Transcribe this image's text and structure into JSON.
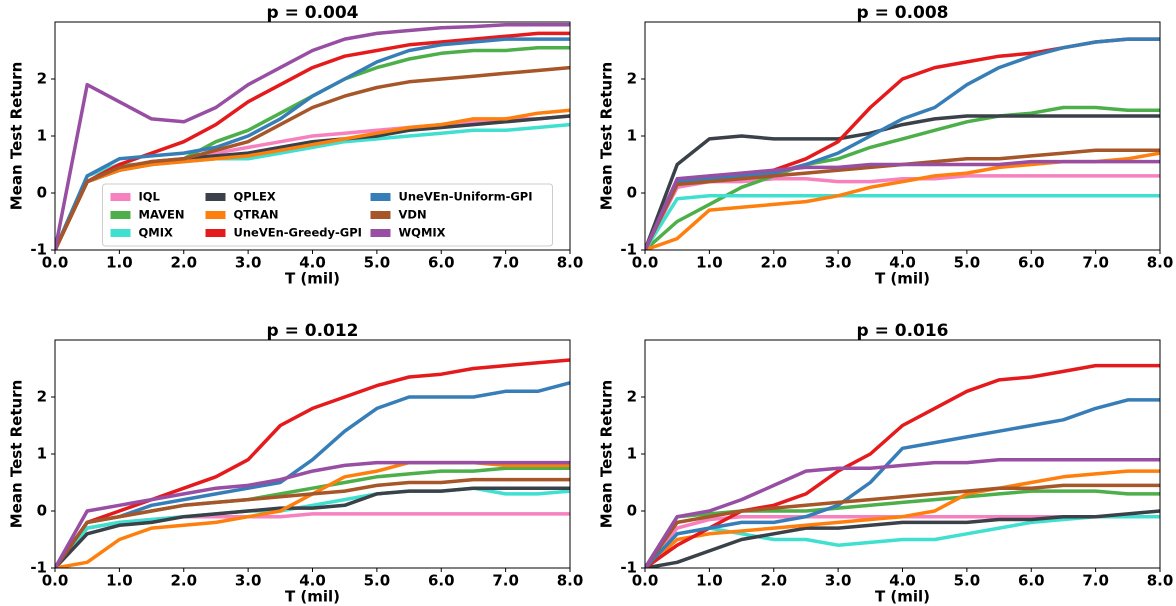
{
  "chart_data": [
    {
      "type": "line",
      "title": "p = 0.004",
      "xlabel": "T (mil)",
      "ylabel": "Mean Test Return",
      "legend": "lower center",
      "x": [
        0,
        0.5,
        1,
        1.5,
        2,
        2.5,
        3,
        3.5,
        4,
        4.5,
        5,
        5.5,
        6,
        6.5,
        7,
        7.5,
        8
      ],
      "xlim": [
        0,
        8
      ],
      "ylim": [
        -1,
        3
      ],
      "xticks": [
        {
          "value": 0,
          "label": "0.0"
        },
        {
          "value": 1,
          "label": "1.0"
        },
        {
          "value": 2,
          "label": "2.0"
        },
        {
          "value": 3,
          "label": "3.0"
        },
        {
          "value": 4,
          "label": "4.0"
        },
        {
          "value": 5,
          "label": "5.0"
        },
        {
          "value": 6,
          "label": "6.0"
        },
        {
          "value": 7,
          "label": "7.0"
        },
        {
          "value": 8,
          "label": "8.0"
        }
      ],
      "yticks": [
        -1,
        0,
        1,
        2
      ],
      "series": [
        {
          "name": "IQL",
          "color": "#f781bf",
          "values": [
            -1,
            0.2,
            0.4,
            0.55,
            0.6,
            0.7,
            0.8,
            0.9,
            1.0,
            1.05,
            1.1,
            1.15,
            1.2,
            1.25,
            1.3,
            1.3,
            1.35
          ]
        },
        {
          "name": "MAVEN",
          "color": "#4daf4a",
          "values": [
            -1,
            0.2,
            0.4,
            0.55,
            0.6,
            0.9,
            1.1,
            1.4,
            1.7,
            2.0,
            2.2,
            2.35,
            2.45,
            2.5,
            2.5,
            2.55,
            2.55
          ]
        },
        {
          "name": "QMIX",
          "color": "#40e0d0",
          "values": [
            -1,
            0.3,
            0.5,
            0.5,
            0.55,
            0.6,
            0.6,
            0.7,
            0.8,
            0.9,
            0.95,
            1.0,
            1.05,
            1.1,
            1.1,
            1.15,
            1.2
          ]
        },
        {
          "name": "QPLEX",
          "color": "#3b4148",
          "values": [
            -1,
            0.2,
            0.4,
            0.5,
            0.6,
            0.65,
            0.7,
            0.8,
            0.9,
            0.95,
            1.0,
            1.1,
            1.15,
            1.2,
            1.25,
            1.3,
            1.35
          ]
        },
        {
          "name": "QTRAN",
          "color": "#ff7f0e",
          "values": [
            -1,
            0.2,
            0.4,
            0.5,
            0.55,
            0.6,
            0.65,
            0.75,
            0.85,
            0.95,
            1.05,
            1.15,
            1.2,
            1.3,
            1.3,
            1.4,
            1.45
          ]
        },
        {
          "name": "UneVEn-Greedy-GPI",
          "color": "#e41a1c",
          "values": [
            -1,
            0.2,
            0.5,
            0.7,
            0.9,
            1.2,
            1.6,
            1.9,
            2.2,
            2.4,
            2.5,
            2.6,
            2.65,
            2.7,
            2.75,
            2.8,
            2.8
          ]
        },
        {
          "name": "UneVEn-Uniform-GPI",
          "color": "#377eb8",
          "values": [
            -1,
            0.3,
            0.6,
            0.65,
            0.7,
            0.8,
            1.0,
            1.3,
            1.7,
            2.0,
            2.3,
            2.5,
            2.6,
            2.65,
            2.7,
            2.7,
            2.7
          ]
        },
        {
          "name": "VDN",
          "color": "#a65628",
          "values": [
            -1,
            0.2,
            0.45,
            0.55,
            0.6,
            0.75,
            0.9,
            1.2,
            1.5,
            1.7,
            1.85,
            1.95,
            2.0,
            2.05,
            2.1,
            2.15,
            2.2
          ]
        },
        {
          "name": "WQMIX",
          "color": "#984ea3",
          "values": [
            -1,
            1.9,
            1.6,
            1.3,
            1.25,
            1.5,
            1.9,
            2.2,
            2.5,
            2.7,
            2.8,
            2.85,
            2.9,
            2.92,
            2.95,
            2.95,
            2.95
          ]
        }
      ]
    },
    {
      "type": "line",
      "title": "p = 0.008",
      "xlabel": "T (mil)",
      "ylabel": "Mean Test Return",
      "legend": "none",
      "x": [
        0,
        0.5,
        1,
        1.5,
        2,
        2.5,
        3,
        3.5,
        4,
        4.5,
        5,
        5.5,
        6,
        6.5,
        7,
        7.5,
        8
      ],
      "xlim": [
        0,
        8
      ],
      "ylim": [
        -1,
        3
      ],
      "xticks": [
        {
          "value": 0,
          "label": "0.0"
        },
        {
          "value": 1,
          "label": "1.0"
        },
        {
          "value": 2,
          "label": "2.0"
        },
        {
          "value": 3,
          "label": "3.0"
        },
        {
          "value": 4,
          "label": "4.0"
        },
        {
          "value": 5,
          "label": "5.0"
        },
        {
          "value": 6,
          "label": "6.0"
        },
        {
          "value": 7,
          "label": "7.0"
        },
        {
          "value": 8,
          "label": "8.0"
        }
      ],
      "yticks": [
        -1,
        0,
        1,
        2
      ],
      "series": [
        {
          "color": "#f781bf",
          "values": [
            -1,
            0.1,
            0.2,
            0.2,
            0.25,
            0.25,
            0.2,
            0.2,
            0.25,
            0.25,
            0.3,
            0.3,
            0.3,
            0.3,
            0.3,
            0.3,
            0.3
          ]
        },
        {
          "color": "#4daf4a",
          "values": [
            -1,
            -0.5,
            -0.2,
            0.1,
            0.3,
            0.5,
            0.6,
            0.8,
            0.95,
            1.1,
            1.25,
            1.35,
            1.4,
            1.5,
            1.5,
            1.45,
            1.45
          ]
        },
        {
          "color": "#40e0d0",
          "values": [
            -1,
            -0.1,
            -0.05,
            -0.05,
            -0.05,
            -0.05,
            -0.05,
            -0.05,
            -0.05,
            -0.05,
            -0.05,
            -0.05,
            -0.05,
            -0.05,
            -0.05,
            -0.05,
            -0.05
          ]
        },
        {
          "color": "#3b4148",
          "values": [
            -1,
            0.5,
            0.95,
            1.0,
            0.95,
            0.95,
            0.95,
            1.05,
            1.2,
            1.3,
            1.35,
            1.35,
            1.35,
            1.35,
            1.35,
            1.35,
            1.35
          ]
        },
        {
          "color": "#ff7f0e",
          "values": [
            -1,
            -0.8,
            -0.3,
            -0.25,
            -0.2,
            -0.15,
            -0.05,
            0.1,
            0.2,
            0.3,
            0.35,
            0.45,
            0.5,
            0.55,
            0.55,
            0.6,
            0.7
          ]
        },
        {
          "color": "#e41a1c",
          "values": [
            -1,
            0.2,
            0.25,
            0.3,
            0.4,
            0.6,
            0.9,
            1.5,
            2.0,
            2.2,
            2.3,
            2.4,
            2.45,
            2.55,
            2.65,
            2.7,
            2.7
          ]
        },
        {
          "color": "#377eb8",
          "values": [
            -1,
            0.2,
            0.25,
            0.3,
            0.35,
            0.5,
            0.7,
            1.0,
            1.3,
            1.5,
            1.9,
            2.2,
            2.4,
            2.55,
            2.65,
            2.7,
            2.7
          ]
        },
        {
          "color": "#a65628",
          "values": [
            -1,
            0.15,
            0.2,
            0.25,
            0.3,
            0.35,
            0.4,
            0.45,
            0.5,
            0.55,
            0.6,
            0.6,
            0.65,
            0.7,
            0.75,
            0.75,
            0.75
          ]
        },
        {
          "color": "#984ea3",
          "values": [
            -1,
            0.25,
            0.3,
            0.35,
            0.4,
            0.45,
            0.45,
            0.5,
            0.5,
            0.5,
            0.5,
            0.5,
            0.55,
            0.55,
            0.55,
            0.55,
            0.55
          ]
        }
      ]
    },
    {
      "type": "line",
      "title": "p = 0.012",
      "xlabel": "T (mil)",
      "ylabel": "Mean Test Return",
      "legend": "none",
      "x": [
        0,
        0.5,
        1,
        1.5,
        2,
        2.5,
        3,
        3.5,
        4,
        4.5,
        5,
        5.5,
        6,
        6.5,
        7,
        7.5,
        8
      ],
      "xlim": [
        0,
        8
      ],
      "ylim": [
        -1,
        3
      ],
      "xticks": [
        {
          "value": 0,
          "label": "0.0"
        },
        {
          "value": 1,
          "label": "1.0"
        },
        {
          "value": 2,
          "label": "2.0"
        },
        {
          "value": 3,
          "label": "3.0"
        },
        {
          "value": 4,
          "label": "4.0"
        },
        {
          "value": 5,
          "label": "5.0"
        },
        {
          "value": 6,
          "label": "6.0"
        },
        {
          "value": 7,
          "label": "7.0"
        },
        {
          "value": 8,
          "label": "8.0"
        }
      ],
      "yticks": [
        -1,
        0,
        1,
        2
      ],
      "series": [
        {
          "color": "#f781bf",
          "values": [
            -1,
            -0.3,
            -0.2,
            -0.15,
            -0.1,
            -0.1,
            -0.1,
            -0.1,
            -0.05,
            -0.05,
            -0.05,
            -0.05,
            -0.05,
            -0.05,
            -0.05,
            -0.05,
            -0.05
          ]
        },
        {
          "color": "#4daf4a",
          "values": [
            -1,
            -0.2,
            -0.1,
            0,
            0.1,
            0.15,
            0.2,
            0.3,
            0.4,
            0.5,
            0.6,
            0.65,
            0.7,
            0.7,
            0.75,
            0.75,
            0.75
          ]
        },
        {
          "color": "#40e0d0",
          "values": [
            -1,
            -0.3,
            -0.2,
            -0.15,
            -0.1,
            -0.05,
            0,
            0,
            0.1,
            0.2,
            0.3,
            0.35,
            0.35,
            0.4,
            0.3,
            0.3,
            0.35
          ]
        },
        {
          "color": "#3b4148",
          "values": [
            -1,
            -0.4,
            -0.25,
            -0.2,
            -0.1,
            -0.05,
            0,
            0.05,
            0.05,
            0.1,
            0.3,
            0.35,
            0.35,
            0.4,
            0.4,
            0.4,
            0.4
          ]
        },
        {
          "color": "#ff7f0e",
          "values": [
            -1,
            -0.9,
            -0.5,
            -0.3,
            -0.25,
            -0.2,
            -0.1,
            0,
            0.3,
            0.6,
            0.7,
            0.85,
            0.85,
            0.85,
            0.8,
            0.8,
            0.8
          ]
        },
        {
          "color": "#e41a1c",
          "values": [
            -1,
            -0.2,
            0,
            0.2,
            0.4,
            0.6,
            0.9,
            1.5,
            1.8,
            2.0,
            2.2,
            2.35,
            2.4,
            2.5,
            2.55,
            2.6,
            2.65
          ]
        },
        {
          "color": "#377eb8",
          "values": [
            -1,
            -0.2,
            -0.1,
            0.1,
            0.2,
            0.3,
            0.4,
            0.5,
            0.9,
            1.4,
            1.8,
            2.0,
            2.0,
            2.0,
            2.1,
            2.1,
            2.25
          ]
        },
        {
          "color": "#a65628",
          "values": [
            -1,
            -0.2,
            -0.1,
            0,
            0.1,
            0.15,
            0.2,
            0.25,
            0.3,
            0.35,
            0.45,
            0.5,
            0.5,
            0.55,
            0.55,
            0.55,
            0.55
          ]
        },
        {
          "color": "#984ea3",
          "values": [
            -1,
            0,
            0.1,
            0.2,
            0.3,
            0.4,
            0.45,
            0.55,
            0.7,
            0.8,
            0.85,
            0.85,
            0.85,
            0.85,
            0.85,
            0.85,
            0.85
          ]
        }
      ]
    },
    {
      "type": "line",
      "title": "p = 0.016",
      "xlabel": "T (mil)",
      "ylabel": "Mean Test Return",
      "legend": "none",
      "x": [
        0,
        0.5,
        1,
        1.5,
        2,
        2.5,
        3,
        3.5,
        4,
        4.5,
        5,
        5.5,
        6,
        6.5,
        7,
        7.5,
        8
      ],
      "xlim": [
        0,
        8
      ],
      "ylim": [
        -1,
        3
      ],
      "xticks": [
        {
          "value": 0,
          "label": "0.0"
        },
        {
          "value": 1,
          "label": "1.0"
        },
        {
          "value": 2,
          "label": "2.0"
        },
        {
          "value": 3,
          "label": "3.0"
        },
        {
          "value": 4,
          "label": "4.0"
        },
        {
          "value": 5,
          "label": "5.0"
        },
        {
          "value": 6,
          "label": "6.0"
        },
        {
          "value": 7,
          "label": "7.0"
        },
        {
          "value": 8,
          "label": "8.0"
        }
      ],
      "yticks": [
        -1,
        0,
        1,
        2
      ],
      "series": [
        {
          "color": "#f781bf",
          "values": [
            -1,
            -0.3,
            -0.15,
            -0.1,
            -0.1,
            -0.1,
            -0.1,
            -0.1,
            -0.1,
            -0.1,
            -0.1,
            -0.1,
            -0.1,
            -0.1,
            -0.1,
            -0.1,
            -0.1
          ]
        },
        {
          "color": "#4daf4a",
          "values": [
            -1,
            -0.1,
            -0.05,
            0,
            0,
            0,
            0.05,
            0.1,
            0.15,
            0.2,
            0.25,
            0.3,
            0.35,
            0.35,
            0.35,
            0.3,
            0.3
          ]
        },
        {
          "color": "#40e0d0",
          "values": [
            -1,
            -0.4,
            -0.3,
            -0.4,
            -0.5,
            -0.5,
            -0.6,
            -0.55,
            -0.5,
            -0.5,
            -0.4,
            -0.3,
            -0.2,
            -0.15,
            -0.1,
            -0.1,
            -0.1
          ]
        },
        {
          "color": "#3b4148",
          "values": [
            -1,
            -0.9,
            -0.7,
            -0.5,
            -0.4,
            -0.3,
            -0.3,
            -0.25,
            -0.2,
            -0.2,
            -0.2,
            -0.15,
            -0.15,
            -0.1,
            -0.1,
            -0.05,
            0
          ]
        },
        {
          "color": "#ff7f0e",
          "values": [
            -1,
            -0.5,
            -0.4,
            -0.35,
            -0.3,
            -0.25,
            -0.2,
            -0.15,
            -0.1,
            0.0,
            0.3,
            0.4,
            0.5,
            0.6,
            0.65,
            0.7,
            0.7
          ]
        },
        {
          "color": "#e41a1c",
          "values": [
            -1,
            -0.6,
            -0.3,
            0,
            0.1,
            0.3,
            0.7,
            1.0,
            1.5,
            1.8,
            2.1,
            2.3,
            2.35,
            2.45,
            2.55,
            2.55,
            2.55
          ]
        },
        {
          "color": "#377eb8",
          "values": [
            -1,
            -0.4,
            -0.3,
            -0.2,
            -0.2,
            -0.1,
            0.1,
            0.5,
            1.1,
            1.2,
            1.3,
            1.4,
            1.5,
            1.6,
            1.8,
            1.95,
            1.95
          ]
        },
        {
          "color": "#a65628",
          "values": [
            -1,
            -0.2,
            -0.1,
            0,
            0.05,
            0.1,
            0.15,
            0.2,
            0.25,
            0.3,
            0.35,
            0.4,
            0.4,
            0.45,
            0.45,
            0.45,
            0.45
          ]
        },
        {
          "color": "#984ea3",
          "values": [
            -1,
            -0.1,
            0,
            0.2,
            0.45,
            0.7,
            0.75,
            0.75,
            0.8,
            0.85,
            0.85,
            0.9,
            0.9,
            0.9,
            0.9,
            0.9,
            0.9
          ]
        }
      ]
    }
  ]
}
